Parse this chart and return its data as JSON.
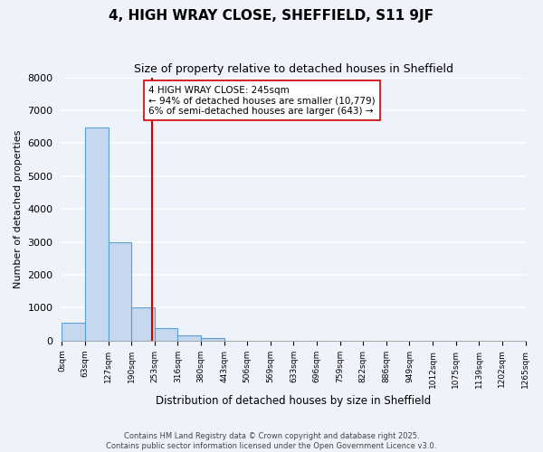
{
  "title": "4, HIGH WRAY CLOSE, SHEFFIELD, S11 9JF",
  "subtitle": "Size of property relative to detached houses in Sheffield",
  "bar_values": [
    550,
    6470,
    2980,
    1000,
    370,
    160,
    65,
    0,
    0,
    0,
    0,
    0,
    0,
    0,
    0,
    0,
    0,
    0,
    0,
    0
  ],
  "bin_labels": [
    "0sqm",
    "63sqm",
    "127sqm",
    "190sqm",
    "253sqm",
    "316sqm",
    "380sqm",
    "443sqm",
    "506sqm",
    "569sqm",
    "633sqm",
    "696sqm",
    "759sqm",
    "822sqm",
    "886sqm",
    "949sqm",
    "1012sqm",
    "1075sqm",
    "1139sqm",
    "1202sqm",
    "1265sqm"
  ],
  "bar_color": "#c5d8f0",
  "bar_edge_color": "#5a9fd4",
  "property_line_x": 245,
  "annotation_text": "4 HIGH WRAY CLOSE: 245sqm\n← 94% of detached houses are smaller (10,779)\n6% of semi-detached houses are larger (643) →",
  "annotation_box_color": "#ffffff",
  "annotation_box_edge_color": "#cc0000",
  "vline_color": "#cc0000",
  "ylabel": "Number of detached properties",
  "xlabel": "Distribution of detached houses by size in Sheffield",
  "ylim": [
    0,
    8000
  ],
  "yticks": [
    0,
    1000,
    2000,
    3000,
    4000,
    5000,
    6000,
    7000,
    8000
  ],
  "background_color": "#eef2fa",
  "grid_color": "#ffffff",
  "footer_line1": "Contains HM Land Registry data © Crown copyright and database right 2025.",
  "footer_line2": "Contains public sector information licensed under the Open Government Licence v3.0.",
  "bin_width": 63,
  "num_bins": 20
}
